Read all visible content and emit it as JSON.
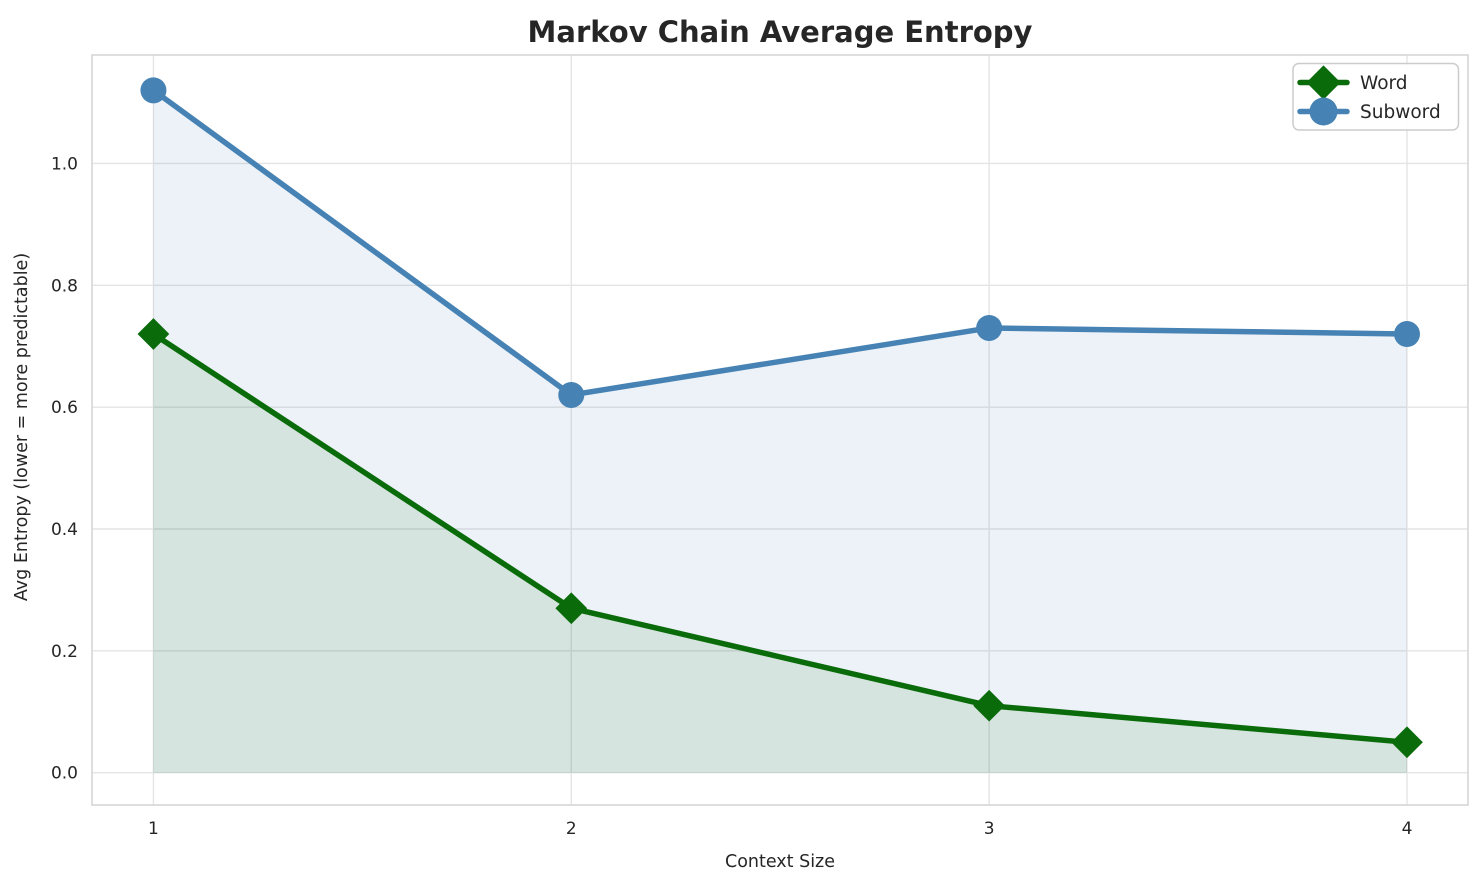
{
  "chart_data": {
    "type": "line",
    "title": "Markov Chain Average Entropy",
    "xlabel": "Context Size",
    "ylabel": "Avg Entropy (lower = more predictable)",
    "x": [
      1,
      2,
      3,
      4
    ],
    "series": [
      {
        "name": "Word",
        "color": "#0a6b0a",
        "marker": "diamond",
        "values": [
          0.72,
          0.27,
          0.11,
          0.05
        ],
        "fill_opacity": 0.1
      },
      {
        "name": "Subword",
        "color": "#4682b4",
        "marker": "circle",
        "values": [
          1.12,
          0.62,
          0.73,
          0.72
        ],
        "fill_opacity": 0.1
      }
    ],
    "xtick_labels": [
      "1",
      "2",
      "3",
      "4"
    ],
    "ytick_values": [
      0.0,
      0.2,
      0.4,
      0.6,
      0.8,
      1.0
    ],
    "ytick_labels": [
      "0.0",
      "0.2",
      "0.4",
      "0.6",
      "0.8",
      "1.0"
    ],
    "xlim": [
      0.853,
      4.146
    ],
    "ylim": [
      -0.053,
      1.178
    ],
    "grid": true,
    "area_fill_to_zero": true,
    "legend": {
      "position": "upper-right",
      "labels": [
        "Word",
        "Subword"
      ]
    }
  },
  "colors": {
    "grid": "#e4e4e4",
    "spine": "#d6d6d6",
    "text": "#262626",
    "legend_border": "#cccccc",
    "legend_background": "#ffffff"
  }
}
